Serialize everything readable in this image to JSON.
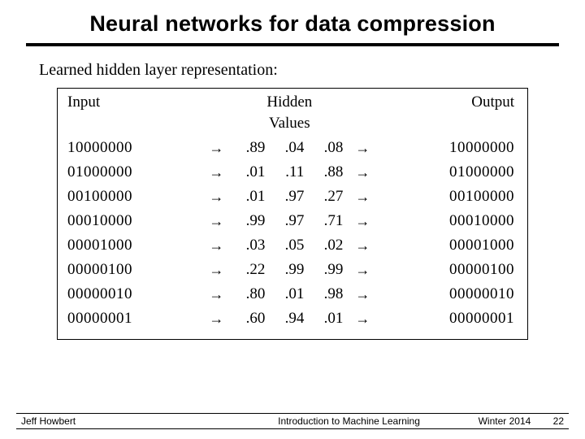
{
  "slide": {
    "title": "Neural networks for data compression",
    "subhead": "Learned hidden layer representation:",
    "table": {
      "headers": {
        "input": "Input",
        "hidden": "Hidden",
        "values": "Values",
        "output": "Output"
      },
      "arrow": "→",
      "rows": [
        {
          "input": "10000000",
          "h": [
            ".89",
            ".04",
            ".08"
          ],
          "output": "10000000"
        },
        {
          "input": "01000000",
          "h": [
            ".01",
            ".11",
            ".88"
          ],
          "output": "01000000"
        },
        {
          "input": "00100000",
          "h": [
            ".01",
            ".97",
            ".27"
          ],
          "output": "00100000"
        },
        {
          "input": "00010000",
          "h": [
            ".99",
            ".97",
            ".71"
          ],
          "output": "00010000"
        },
        {
          "input": "00001000",
          "h": [
            ".03",
            ".05",
            ".02"
          ],
          "output": "00001000"
        },
        {
          "input": "00000100",
          "h": [
            ".22",
            ".99",
            ".99"
          ],
          "output": "00000100"
        },
        {
          "input": "00000010",
          "h": [
            ".80",
            ".01",
            ".98"
          ],
          "output": "00000010"
        },
        {
          "input": "00000001",
          "h": [
            ".60",
            ".94",
            ".01"
          ],
          "output": "00000001"
        }
      ]
    }
  },
  "footer": {
    "author": "Jeff Howbert",
    "course": "Introduction to Machine Learning",
    "term": "Winter 2014",
    "pageno": "22"
  },
  "style": {
    "background": "#ffffff",
    "text_color": "#000000",
    "title_fontsize": 27,
    "body_fontsize": 19,
    "footer_fontsize": 12,
    "rule_width": 4
  }
}
